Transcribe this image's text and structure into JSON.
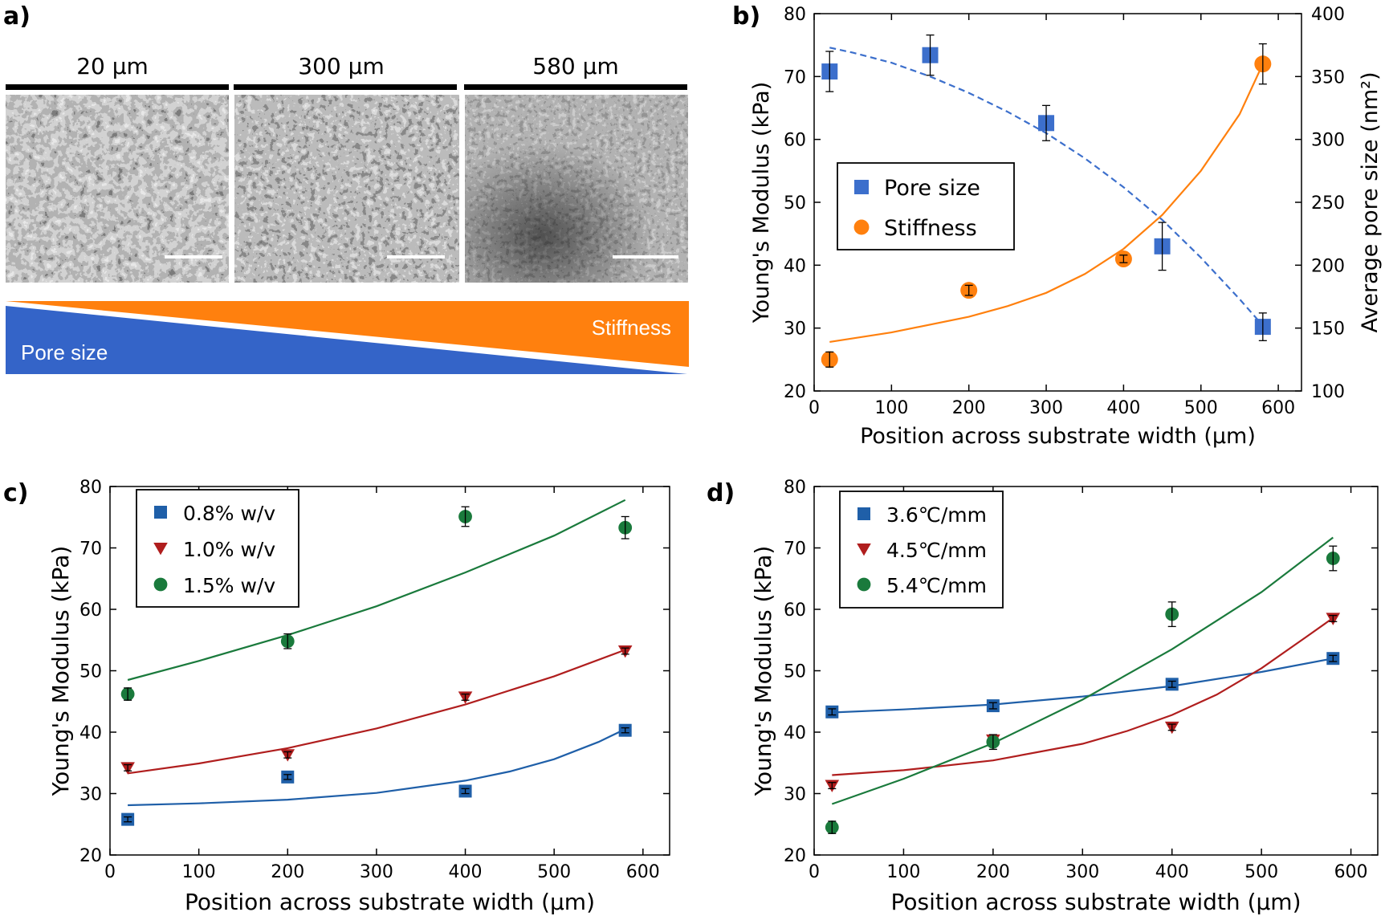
{
  "panel_a": {
    "label": "a)",
    "images": [
      {
        "title": "20 μm"
      },
      {
        "title": "300 μm"
      },
      {
        "title": "580 μm"
      }
    ],
    "gradient": {
      "pore_label": "Pore size",
      "stiffness_label": "Stiffness",
      "pore_color": "#3464c8",
      "stiffness_color": "#ff800e"
    }
  },
  "chart_data": [
    {
      "id": "b",
      "type": "scatter",
      "label": "b)",
      "xlabel": "Position across substrate width (μm)",
      "ylabel": "Young's Modulus (kPa)",
      "y2label": "Average pore size (nm²)",
      "xlim": [
        0,
        630
      ],
      "ylim": [
        20,
        80
      ],
      "y2lim": [
        100,
        400
      ],
      "xticks": [
        0,
        100,
        200,
        300,
        400,
        500,
        600
      ],
      "yticks": [
        20,
        30,
        40,
        50,
        60,
        70,
        80
      ],
      "y2ticks": [
        100,
        150,
        200,
        250,
        300,
        350,
        400
      ],
      "legend_position": "center-left",
      "series": [
        {
          "name": "Pore size",
          "axis": "right",
          "marker": "square",
          "color": "#3c6fcc",
          "x": [
            20,
            150,
            300,
            450,
            580
          ],
          "y": [
            354,
            367,
            313,
            215,
            151
          ],
          "err": [
            16,
            16,
            14,
            19,
            11
          ],
          "fit_style": "dashed",
          "fit": {
            "x": [
              20,
              50,
              100,
              150,
              200,
              250,
              300,
              350,
              400,
              450,
              500,
              550,
              580
            ],
            "y": [
              373,
              369,
              361,
              350,
              337,
              322,
              305,
              285,
              262,
              236,
              206,
              173,
              152
            ]
          }
        },
        {
          "name": "Stiffness",
          "axis": "left",
          "marker": "circle",
          "color": "#ff800e",
          "x": [
            20,
            200,
            400,
            580
          ],
          "y": [
            25,
            36,
            41,
            72
          ],
          "err": [
            1.2,
            0.8,
            0.6,
            3.2
          ],
          "fit_style": "solid",
          "fit": {
            "x": [
              20,
              100,
              200,
              250,
              300,
              350,
              400,
              450,
              500,
              550,
              580
            ],
            "y": [
              27.8,
              29.3,
              31.8,
              33.5,
              35.6,
              38.6,
              42.6,
              48.0,
              55.0,
              64.0,
              72.0
            ]
          }
        }
      ]
    },
    {
      "id": "c",
      "type": "scatter",
      "label": "c)",
      "xlabel": "Position across substrate width (μm)",
      "ylabel": "Young's Modulus (kPa)",
      "xlim": [
        0,
        630
      ],
      "ylim": [
        20,
        80
      ],
      "xticks": [
        0,
        100,
        200,
        300,
        400,
        500,
        600
      ],
      "yticks": [
        20,
        30,
        40,
        50,
        60,
        70,
        80
      ],
      "legend_position": "top-left",
      "series": [
        {
          "name": "0.8% w/v",
          "marker": "square",
          "color": "#1f5fa8",
          "x": [
            20,
            200,
            400,
            580
          ],
          "y": [
            25.8,
            32.7,
            30.4,
            40.3
          ],
          "err": [
            0.4,
            0.4,
            0.4,
            0.4
          ],
          "fit": {
            "x": [
              20,
              100,
              200,
              300,
              400,
              450,
              500,
              550,
              580
            ],
            "y": [
              28.1,
              28.4,
              29.0,
              30.1,
              32.1,
              33.6,
              35.6,
              38.4,
              40.5
            ]
          }
        },
        {
          "name": "1.0% w/v",
          "marker": "triangle-down",
          "color": "#b01e1e",
          "x": [
            20,
            200,
            400,
            580
          ],
          "y": [
            34.2,
            36.3,
            45.7,
            53.2
          ],
          "err": [
            0.5,
            0.5,
            0.5,
            0.5
          ],
          "fit": {
            "x": [
              20,
              100,
              200,
              300,
              400,
              500,
              580
            ],
            "y": [
              33.3,
              34.9,
              37.4,
              40.6,
              44.5,
              49.1,
              53.4
            ]
          }
        },
        {
          "name": "1.5% w/v",
          "marker": "circle",
          "color": "#1a7a3c",
          "x": [
            20,
            200,
            400,
            580
          ],
          "y": [
            46.2,
            54.8,
            75.1,
            73.3
          ],
          "err": [
            1.0,
            1.2,
            1.6,
            1.8
          ],
          "fit": {
            "x": [
              20,
              100,
              200,
              300,
              400,
              500,
              580
            ],
            "y": [
              48.5,
              51.6,
              55.8,
              60.5,
              66.0,
              72.0,
              77.8
            ]
          }
        }
      ]
    },
    {
      "id": "d",
      "type": "scatter",
      "label": "d)",
      "xlabel": "Position across substrate width (μm)",
      "ylabel": "Young's Modulus (kPa)",
      "xlim": [
        0,
        630
      ],
      "ylim": [
        20,
        80
      ],
      "xticks": [
        0,
        100,
        200,
        300,
        400,
        500,
        600
      ],
      "yticks": [
        20,
        30,
        40,
        50,
        60,
        70,
        80
      ],
      "legend_position": "top-left",
      "series": [
        {
          "name": "3.6℃/mm",
          "marker": "square",
          "color": "#1f5fa8",
          "x": [
            20,
            200,
            400,
            580
          ],
          "y": [
            43.3,
            44.3,
            47.8,
            52.0
          ],
          "err": [
            0.5,
            0.5,
            0.5,
            0.5
          ],
          "fit": {
            "x": [
              20,
              100,
              200,
              300,
              400,
              500,
              580
            ],
            "y": [
              43.2,
              43.7,
              44.5,
              45.8,
              47.5,
              49.8,
              52.0
            ]
          }
        },
        {
          "name": "4.5℃/mm",
          "marker": "triangle-down",
          "color": "#b01e1e",
          "x": [
            20,
            200,
            400,
            580
          ],
          "y": [
            31.3,
            38.7,
            40.8,
            58.5
          ],
          "err": [
            0.5,
            0.5,
            0.5,
            0.5
          ],
          "fit": {
            "x": [
              20,
              100,
              200,
              300,
              350,
              400,
              450,
              500,
              550,
              580
            ],
            "y": [
              33.0,
              33.8,
              35.4,
              38.1,
              40.2,
              42.8,
              46.1,
              50.4,
              55.5,
              58.6
            ]
          }
        },
        {
          "name": "5.4℃/mm",
          "marker": "circle",
          "color": "#1a7a3c",
          "x": [
            20,
            200,
            400,
            580
          ],
          "y": [
            24.5,
            38.4,
            59.2,
            68.3
          ],
          "err": [
            1.0,
            1.2,
            2.0,
            2.0
          ],
          "fit": {
            "x": [
              20,
              100,
              200,
              300,
              400,
              500,
              580
            ],
            "y": [
              28.3,
              32.4,
              38.2,
              45.3,
              53.5,
              62.8,
              71.7
            ]
          }
        }
      ]
    }
  ]
}
